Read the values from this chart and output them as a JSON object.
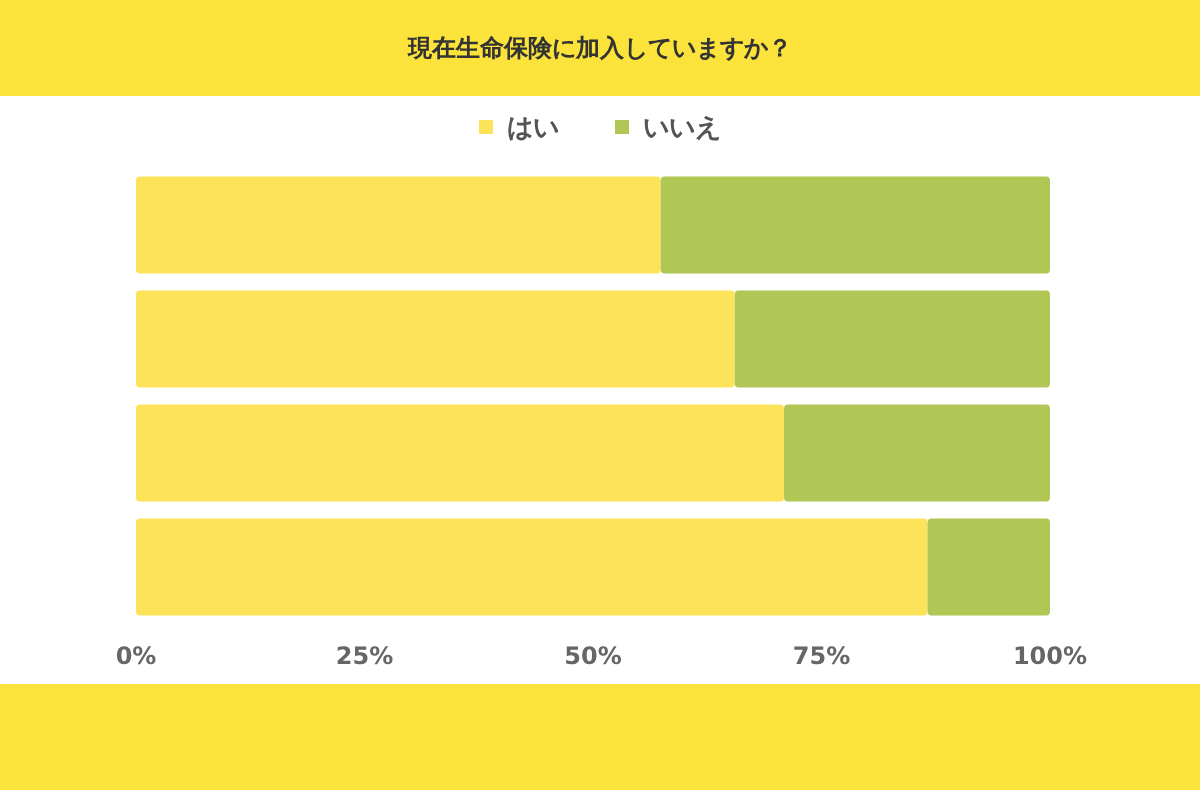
{
  "chart_data": {
    "type": "bar",
    "title": "現在生命保険に加入していますか？",
    "orientation": "horizontal",
    "stacked": true,
    "categories": [
      null,
      null,
      null,
      null
    ],
    "series": [
      {
        "name": "はい",
        "color": "#fde35a",
        "values": [
          57.4,
          65.5,
          70.9,
          86.6
        ]
      },
      {
        "name": "いいえ",
        "color": "#b0c655",
        "values": [
          42.6,
          34.5,
          29.1,
          13.4
        ]
      }
    ],
    "xlim": [
      0,
      100
    ],
    "xticks": [
      {
        "value": 0,
        "label": "0%"
      },
      {
        "value": 25,
        "label": "25%"
      },
      {
        "value": 50,
        "label": "50%"
      },
      {
        "value": 75,
        "label": "75%"
      },
      {
        "value": 100,
        "label": "100%"
      }
    ],
    "legend": "top"
  }
}
